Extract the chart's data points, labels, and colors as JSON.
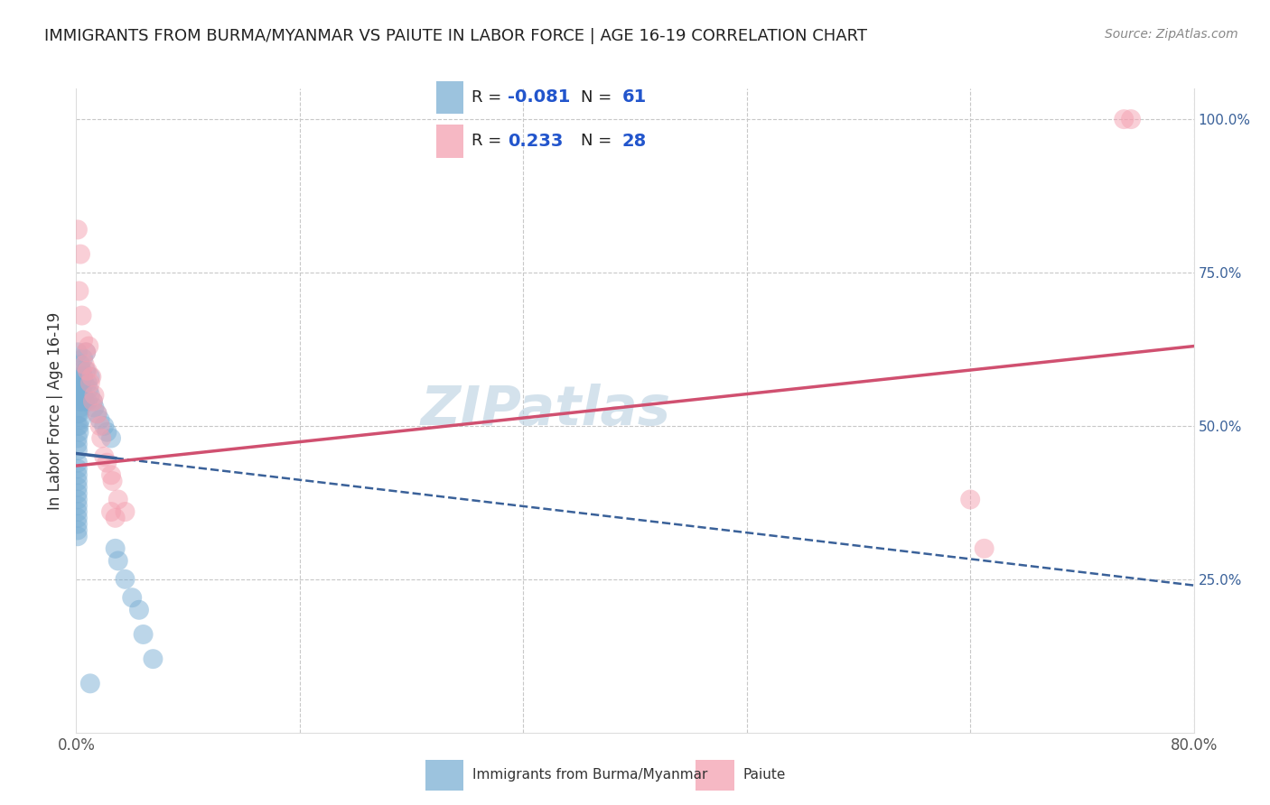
{
  "title": "IMMIGRANTS FROM BURMA/MYANMAR VS PAIUTE IN LABOR FORCE | AGE 16-19 CORRELATION CHART",
  "source": "Source: ZipAtlas.com",
  "ylabel": "In Labor Force | Age 16-19",
  "xlim": [
    0.0,
    0.8
  ],
  "ylim": [
    0.0,
    1.05
  ],
  "right_yticks": [
    0.0,
    0.25,
    0.5,
    0.75,
    1.0
  ],
  "right_yticklabels": [
    "",
    "25.0%",
    "50.0%",
    "75.0%",
    "100.0%"
  ],
  "xtick_labels": [
    "0.0%",
    "",
    "",
    "",
    "",
    "80.0%"
  ],
  "xtick_positions": [
    0.0,
    0.16,
    0.32,
    0.48,
    0.64,
    0.8
  ],
  "blue_color": "#7bafd4",
  "pink_color": "#f4a0b0",
  "blue_line_color": "#3a6199",
  "pink_line_color": "#d05070",
  "blue_scatter": [
    [
      0.001,
      0.62
    ],
    [
      0.001,
      0.55
    ],
    [
      0.001,
      0.52
    ],
    [
      0.001,
      0.5
    ],
    [
      0.001,
      0.48
    ],
    [
      0.001,
      0.47
    ],
    [
      0.001,
      0.46
    ],
    [
      0.001,
      0.44
    ],
    [
      0.001,
      0.43
    ],
    [
      0.001,
      0.42
    ],
    [
      0.001,
      0.41
    ],
    [
      0.001,
      0.4
    ],
    [
      0.001,
      0.39
    ],
    [
      0.001,
      0.38
    ],
    [
      0.001,
      0.37
    ],
    [
      0.001,
      0.36
    ],
    [
      0.001,
      0.35
    ],
    [
      0.001,
      0.34
    ],
    [
      0.001,
      0.33
    ],
    [
      0.001,
      0.32
    ],
    [
      0.002,
      0.58
    ],
    [
      0.002,
      0.56
    ],
    [
      0.002,
      0.54
    ],
    [
      0.002,
      0.52
    ],
    [
      0.002,
      0.5
    ],
    [
      0.002,
      0.49
    ],
    [
      0.003,
      0.6
    ],
    [
      0.003,
      0.57
    ],
    [
      0.003,
      0.55
    ],
    [
      0.003,
      0.53
    ],
    [
      0.003,
      0.51
    ],
    [
      0.004,
      0.59
    ],
    [
      0.004,
      0.56
    ],
    [
      0.004,
      0.54
    ],
    [
      0.005,
      0.61
    ],
    [
      0.005,
      0.58
    ],
    [
      0.005,
      0.55
    ],
    [
      0.006,
      0.57
    ],
    [
      0.006,
      0.54
    ],
    [
      0.007,
      0.62
    ],
    [
      0.007,
      0.59
    ],
    [
      0.008,
      0.57
    ],
    [
      0.008,
      0.54
    ],
    [
      0.009,
      0.56
    ],
    [
      0.01,
      0.58
    ],
    [
      0.01,
      0.55
    ],
    [
      0.012,
      0.54
    ],
    [
      0.013,
      0.53
    ],
    [
      0.015,
      0.52
    ],
    [
      0.017,
      0.51
    ],
    [
      0.02,
      0.5
    ],
    [
      0.022,
      0.49
    ],
    [
      0.025,
      0.48
    ],
    [
      0.028,
      0.3
    ],
    [
      0.03,
      0.28
    ],
    [
      0.035,
      0.25
    ],
    [
      0.04,
      0.22
    ],
    [
      0.045,
      0.2
    ],
    [
      0.048,
      0.16
    ],
    [
      0.055,
      0.12
    ],
    [
      0.01,
      0.08
    ]
  ],
  "pink_scatter": [
    [
      0.001,
      0.82
    ],
    [
      0.002,
      0.72
    ],
    [
      0.003,
      0.78
    ],
    [
      0.004,
      0.68
    ],
    [
      0.005,
      0.64
    ],
    [
      0.006,
      0.6
    ],
    [
      0.007,
      0.62
    ],
    [
      0.008,
      0.59
    ],
    [
      0.009,
      0.63
    ],
    [
      0.01,
      0.57
    ],
    [
      0.011,
      0.58
    ],
    [
      0.012,
      0.54
    ],
    [
      0.013,
      0.55
    ],
    [
      0.015,
      0.52
    ],
    [
      0.017,
      0.5
    ],
    [
      0.018,
      0.48
    ],
    [
      0.02,
      0.45
    ],
    [
      0.022,
      0.44
    ],
    [
      0.025,
      0.42
    ],
    [
      0.026,
      0.41
    ],
    [
      0.03,
      0.38
    ],
    [
      0.035,
      0.36
    ],
    [
      0.025,
      0.36
    ],
    [
      0.028,
      0.35
    ],
    [
      0.64,
      0.38
    ],
    [
      0.65,
      0.3
    ],
    [
      0.75,
      1.0
    ],
    [
      0.755,
      1.0
    ]
  ],
  "watermark": "ZIPatlas",
  "background_color": "#ffffff",
  "grid_color": "#c8c8c8"
}
